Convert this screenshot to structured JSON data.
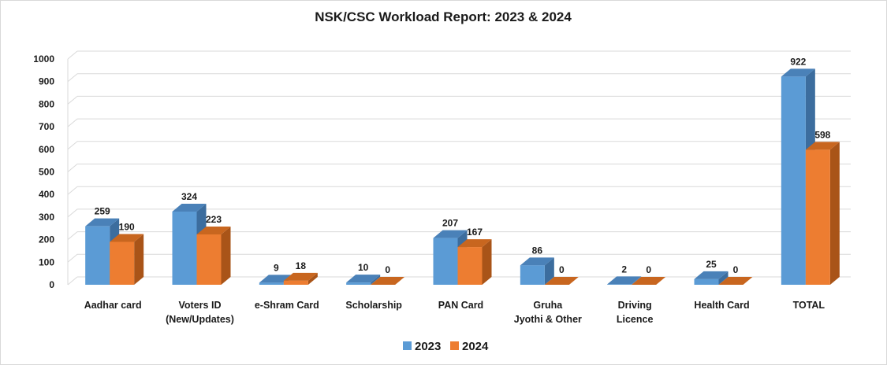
{
  "chart_data": {
    "type": "bar",
    "title": "NSK/CSC Workload Report: 2023 & 2024",
    "categories": [
      [
        "Aadhar card"
      ],
      [
        "Voters ID",
        "(New/Updates)"
      ],
      [
        "e-Shram Card"
      ],
      [
        "Scholarship"
      ],
      [
        "PAN Card"
      ],
      [
        "Gruha",
        "Jyothi & Other"
      ],
      [
        "Driving",
        "Licence"
      ],
      [
        "Health Card"
      ],
      [
        "TOTAL"
      ]
    ],
    "series": [
      {
        "name": "2023",
        "values": [
          259,
          324,
          9,
          10,
          207,
          86,
          2,
          25,
          922
        ]
      },
      {
        "name": "2024",
        "values": [
          190,
          223,
          18,
          0,
          167,
          0,
          0,
          0,
          598
        ]
      }
    ],
    "yticks": [
      0,
      100,
      200,
      300,
      400,
      500,
      600,
      700,
      800,
      900,
      1000
    ],
    "ylim": [
      0,
      1000
    ],
    "grid": true,
    "legend_position": "bottom",
    "colors": {
      "2023": {
        "front": "#5b9bd5",
        "top": "#4a81b8",
        "side": "#3c6d9e"
      },
      "2024": {
        "front": "#ed7d31",
        "top": "#c8661f",
        "side": "#a95418"
      },
      "grid": "#d9d9d9"
    }
  }
}
